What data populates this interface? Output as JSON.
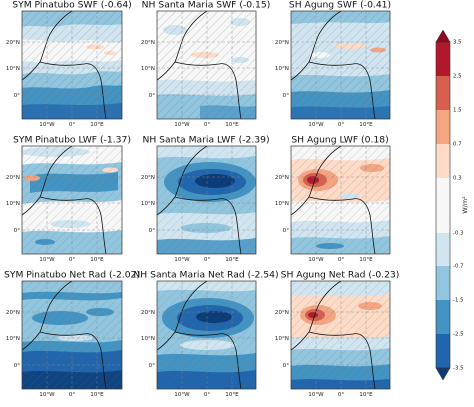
{
  "figure": {
    "colorbar": {
      "label": "W/m²",
      "ticks": [
        "3.5",
        "2.5",
        "1.5",
        "0.7",
        "0.3",
        "-0.3",
        "-0.7",
        "-1.5",
        "-2.5",
        "-3.5"
      ],
      "colors": {
        "very_strong_positive": "#8b0a1e",
        "strong_positive": "#b2182b",
        "positive": "#d6604d",
        "moderate_positive": "#f4a582",
        "weak_positive": "#fddbc7",
        "neutral": "#f7f7f7",
        "weak_negative": "#d1e5f0",
        "moderate_negative": "#92c5de",
        "negative": "#4393c3",
        "strong_negative": "#2166ac",
        "very_strong_negative": "#0b3c78"
      }
    },
    "lat_labels": [
      "20°N",
      "10°N",
      "0°"
    ],
    "lon_labels": [
      "10°W",
      "0°",
      "10°E"
    ],
    "panels": [
      {
        "title": "SYM Pinatubo SWF (-0.64)"
      },
      {
        "title": "NH Santa Maria SWF (-0.15)"
      },
      {
        "title": "SH Agung SWF (-0.41)"
      },
      {
        "title": "SYM Pinatubo LWF (-1.37)"
      },
      {
        "title": "NH Santa Maria LWF (-2.39)"
      },
      {
        "title": "SH Agung LWF (0.18)"
      },
      {
        "title": "SYM Pinatubo Net Rad (-2.02)"
      },
      {
        "title": "NH Santa Maria Net Rad (-2.54)"
      },
      {
        "title": "SH Agung Net Rad (-0.23)"
      }
    ]
  }
}
